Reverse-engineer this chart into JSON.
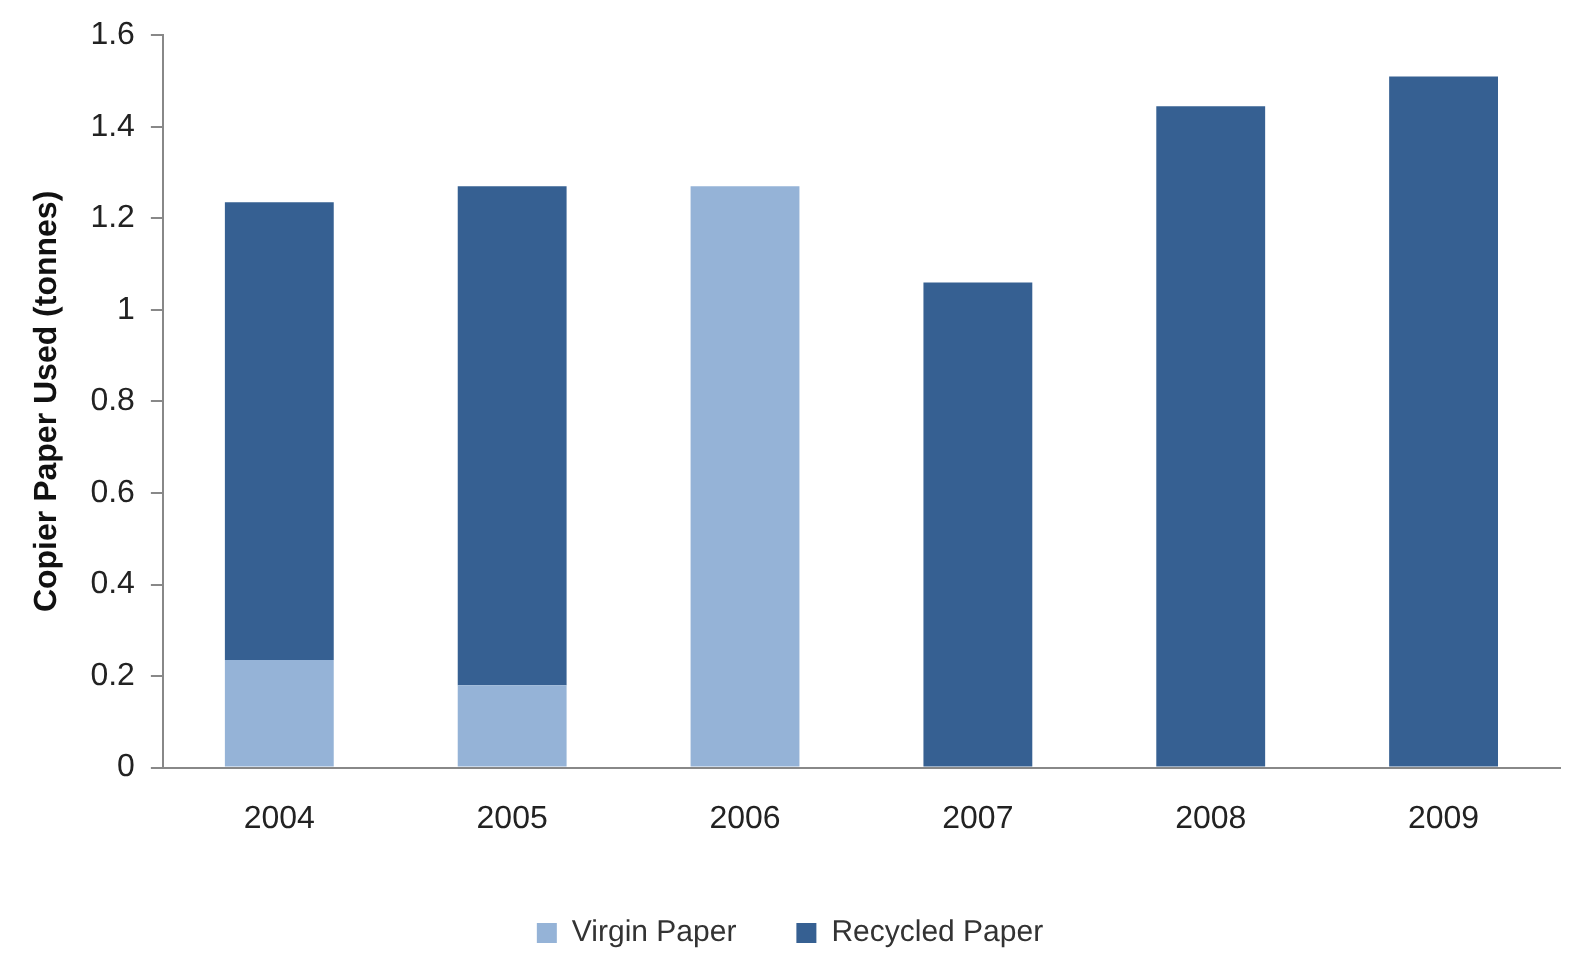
{
  "chart_data": {
    "type": "bar",
    "ylabel": "Copier Paper Used (tonnes)",
    "categories": [
      "2004",
      "2005",
      "2006",
      "2007",
      "2008",
      "2009"
    ],
    "stacked": true,
    "series": [
      {
        "name": "Virgin Paper",
        "color": "#95b3d7",
        "values": [
          0.235,
          0.18,
          1.27,
          0,
          0,
          0
        ]
      },
      {
        "name": "Recycled Paper",
        "color": "#366092",
        "values": [
          1.0,
          1.09,
          0,
          1.06,
          1.445,
          1.51
        ]
      }
    ],
    "ylim": [
      0,
      1.6
    ],
    "yticks": [
      0,
      0.2,
      0.4,
      0.6,
      0.8,
      1,
      1.2,
      1.4,
      1.6
    ],
    "grid": false,
    "legend": "bottom"
  }
}
